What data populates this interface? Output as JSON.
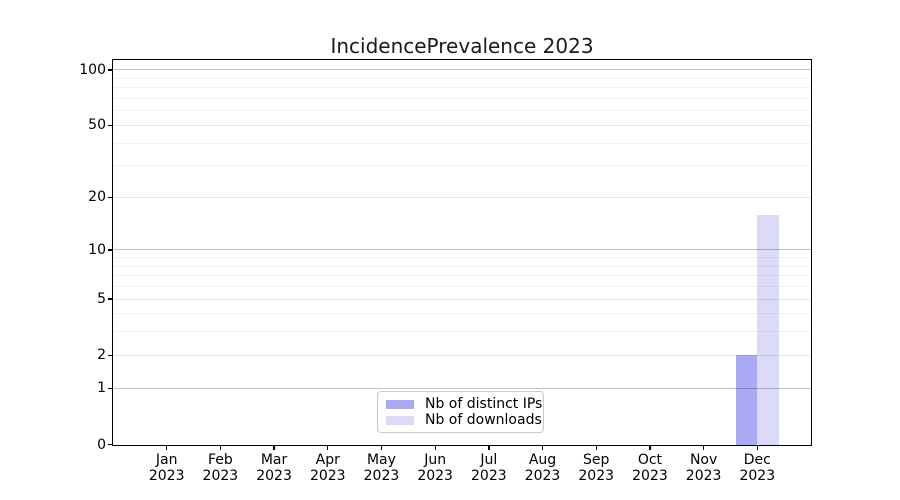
{
  "title": "IncidencePrevalence 2023",
  "chart_data": {
    "type": "bar",
    "title": "IncidencePrevalence 2023",
    "categories": [
      {
        "month": "Jan",
        "year": "2023"
      },
      {
        "month": "Feb",
        "year": "2023"
      },
      {
        "month": "Mar",
        "year": "2023"
      },
      {
        "month": "Apr",
        "year": "2023"
      },
      {
        "month": "May",
        "year": "2023"
      },
      {
        "month": "Jun",
        "year": "2023"
      },
      {
        "month": "Jul",
        "year": "2023"
      },
      {
        "month": "Aug",
        "year": "2023"
      },
      {
        "month": "Sep",
        "year": "2023"
      },
      {
        "month": "Oct",
        "year": "2023"
      },
      {
        "month": "Nov",
        "year": "2023"
      },
      {
        "month": "Dec",
        "year": "2023"
      }
    ],
    "series": [
      {
        "name": "Nb of distinct IPs",
        "color": "#a9a9f4",
        "values": [
          null,
          null,
          null,
          null,
          null,
          null,
          null,
          null,
          null,
          null,
          null,
          2
        ]
      },
      {
        "name": "Nb of downloads",
        "color": "#dbdbf8",
        "values": [
          null,
          null,
          null,
          null,
          null,
          null,
          null,
          null,
          null,
          null,
          null,
          16
        ]
      }
    ],
    "y_axis": {
      "scale": "log10(1+y)",
      "ticks": [
        0,
        1,
        2,
        5,
        10,
        20,
        50,
        100
      ],
      "decade_ticks": [
        1,
        10,
        100
      ],
      "labeled_mid_ticks": [
        2,
        5,
        20,
        50
      ],
      "minor_ticks": [
        3,
        4,
        6,
        7,
        8,
        9,
        30,
        40,
        60,
        70,
        80,
        90
      ],
      "ylim": [
        0,
        113
      ]
    },
    "xlabel": "",
    "ylabel": "",
    "grid": true,
    "legend_position": "lower center"
  },
  "colors": {
    "bar_distinct_ips": "#a9a9f4",
    "bar_downloads": "#dbdbf8",
    "grid_decade": "rgba(0,0,0,0.24)",
    "grid_labeled": "rgba(0,0,0,0.10)",
    "grid_minor": "rgba(0,0,0,0.05)",
    "spine": "#000000",
    "legend_border": "#c9c9c9"
  }
}
